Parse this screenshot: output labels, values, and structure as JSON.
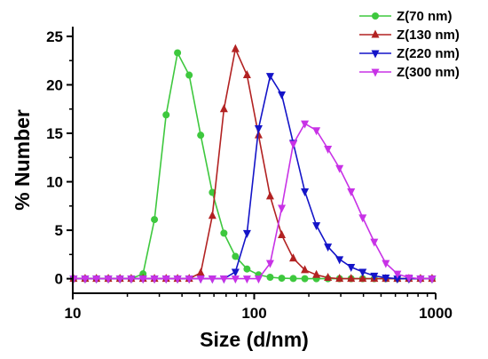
{
  "chart_data": {
    "type": "line",
    "title": "",
    "xlabel": "Size (d/nm)",
    "ylabel": "% Number",
    "xscale": "log",
    "xlim": [
      10,
      1000
    ],
    "ylim": [
      -1.5,
      26
    ],
    "x_ticks": [
      10,
      100,
      1000
    ],
    "x_tick_labels": [
      "10",
      "100",
      "1000"
    ],
    "y_ticks": [
      0,
      5,
      10,
      15,
      20,
      25
    ],
    "y_tick_labels": [
      "0",
      "5",
      "10",
      "15",
      "20",
      "25"
    ],
    "grid": false,
    "legend_position": "top-right",
    "x": [
      10.1,
      11.7,
      13.5,
      15.7,
      18.2,
      21.0,
      24.4,
      28.2,
      32.7,
      37.8,
      43.8,
      50.7,
      58.8,
      68.1,
      78.8,
      91.3,
      105.7,
      122.4,
      141.8,
      164.2,
      190.1,
      220.2,
      255.0,
      295.3,
      342.0,
      396.1,
      458.7,
      531.2,
      615.1,
      712.4,
      825.0,
      955.4
    ],
    "series": [
      {
        "name": "Z(70 nm)",
        "color": "#3ec83e",
        "marker": "circle",
        "values": [
          0,
          0,
          0,
          0,
          0,
          0,
          0.5,
          6.1,
          16.9,
          23.3,
          21.0,
          14.8,
          8.9,
          4.7,
          2.3,
          1.0,
          0.4,
          0.15,
          0.05,
          0.02,
          0,
          0,
          0,
          0,
          0,
          0,
          0,
          0,
          0,
          0,
          0,
          0
        ]
      },
      {
        "name": "Z(130 nm)",
        "color": "#b22222",
        "marker": "triangle-up",
        "values": [
          0,
          0,
          0,
          0,
          0,
          0,
          0,
          0,
          0,
          0,
          0,
          0.6,
          6.5,
          17.5,
          23.7,
          21.0,
          14.8,
          8.5,
          4.5,
          2.1,
          0.9,
          0.4,
          0.1,
          0,
          0,
          0,
          0,
          0,
          0,
          0,
          0,
          0
        ]
      },
      {
        "name": "Z(220 nm)",
        "color": "#1414c8",
        "marker": "triangle-down",
        "values": [
          0,
          0,
          0,
          0,
          0,
          0,
          0,
          0,
          0,
          0,
          0,
          0,
          0,
          0,
          0.7,
          4.7,
          15.5,
          20.9,
          19.0,
          14.0,
          9.0,
          5.5,
          3.3,
          2.0,
          1.2,
          0.7,
          0.3,
          0.1,
          0,
          0,
          0,
          0
        ]
      },
      {
        "name": "Z(300 nm)",
        "color": "#c832e6",
        "marker": "triangle-down",
        "values": [
          0,
          0,
          0,
          0,
          0,
          0,
          0,
          0,
          0,
          0,
          0,
          0,
          0,
          0,
          0,
          0,
          0,
          1.6,
          7.3,
          13.9,
          16.0,
          15.3,
          13.4,
          11.4,
          9.0,
          6.3,
          3.8,
          1.6,
          0.5,
          0.1,
          0,
          0
        ]
      }
    ]
  }
}
